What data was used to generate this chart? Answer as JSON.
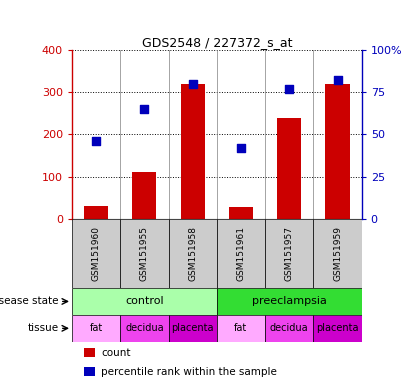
{
  "title": "GDS2548 / 227372_s_at",
  "samples": [
    "GSM151960",
    "GSM151955",
    "GSM151958",
    "GSM151961",
    "GSM151957",
    "GSM151959"
  ],
  "count_values": [
    30,
    110,
    320,
    28,
    240,
    320
  ],
  "percentile_values": [
    46,
    65,
    80,
    42,
    77,
    82
  ],
  "ylim_left": [
    0,
    400
  ],
  "ylim_right": [
    0,
    100
  ],
  "yticks_left": [
    0,
    100,
    200,
    300,
    400
  ],
  "yticks_right": [
    0,
    25,
    50,
    75,
    100
  ],
  "ytick_labels_left": [
    "0",
    "100",
    "200",
    "300",
    "400"
  ],
  "ytick_labels_right": [
    "0",
    "25",
    "50",
    "75",
    "100%"
  ],
  "disease_states": [
    {
      "label": "control",
      "span": [
        0,
        3
      ],
      "color": "#AAFFAA"
    },
    {
      "label": "preeclampsia",
      "span": [
        3,
        6
      ],
      "color": "#33DD33"
    }
  ],
  "tissues": [
    {
      "label": "fat",
      "span": [
        0,
        1
      ],
      "color": "#FFAAFF"
    },
    {
      "label": "decidua",
      "span": [
        1,
        2
      ],
      "color": "#EE44EE"
    },
    {
      "label": "placenta",
      "span": [
        2,
        3
      ],
      "color": "#CC00CC"
    },
    {
      "label": "fat",
      "span": [
        3,
        4
      ],
      "color": "#FFAAFF"
    },
    {
      "label": "decidua",
      "span": [
        4,
        5
      ],
      "color": "#EE44EE"
    },
    {
      "label": "placenta",
      "span": [
        5,
        6
      ],
      "color": "#CC00CC"
    }
  ],
  "bar_color": "#CC0000",
  "dot_color": "#0000BB",
  "bar_width": 0.5,
  "dot_size": 40,
  "grid_color": "black",
  "grid_linestyle": "dotted",
  "background_color": "#FFFFFF",
  "plot_bg_color": "#FFFFFF",
  "label_color_left": "#CC0000",
  "label_color_right": "#0000BB",
  "sample_box_color": "#CCCCCC",
  "row1_label": "disease state",
  "row2_label": "tissue",
  "legend_count_label": "count",
  "legend_pct_label": "percentile rank within the sample"
}
